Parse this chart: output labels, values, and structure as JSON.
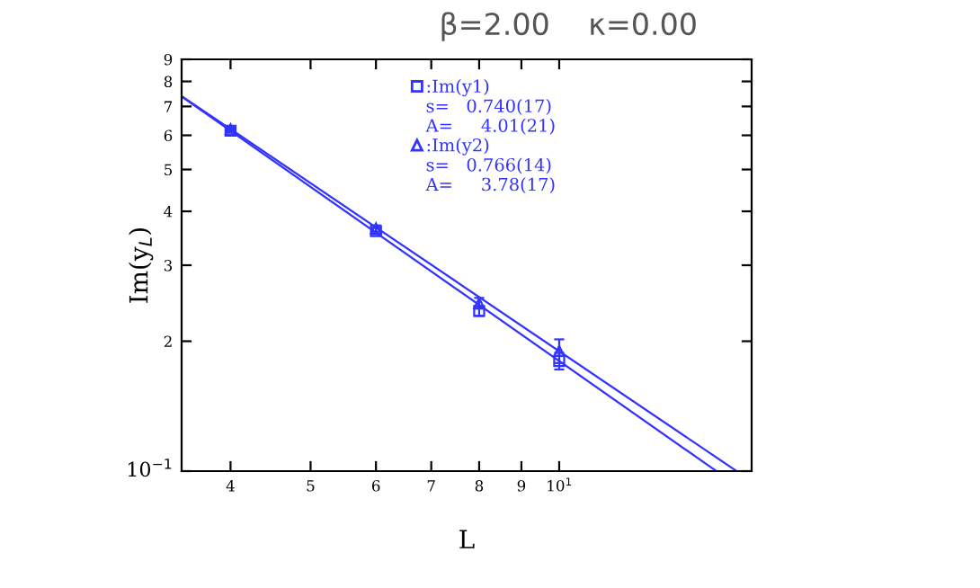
{
  "chart_data": {
    "type": "scatter",
    "title": "β=2.00    κ=0.00",
    "xlabel": "L",
    "ylabel": "Im(y$_{L}$)",
    "log": "xy",
    "grid": false,
    "legend": "top",
    "xlim": [
      3.49,
      17.1
    ],
    "xticks": [
      4,
      5,
      6,
      7,
      8,
      9,
      {
        "value": 10,
        "label": "10$^{1}$"
      }
    ],
    "ylim": [
      1,
      9
    ],
    "yticks": [
      {
        "value": 1,
        "label": null
      },
      2,
      3,
      4,
      5,
      6,
      7,
      8,
      9
    ],
    "annotations": [
      "s=   0.740(17)",
      "A=     4.01(21)",
      "s=   0.766(14)",
      "A=     3.78(17)",
      "10$^{−1}$"
    ],
    "series": [
      {
        "name": ":Im(y1)",
        "type": "scatter",
        "marker": "square",
        "color": "#3333ff",
        "x": [
          4,
          6,
          8,
          10
        ],
        "values": [
          6.15,
          3.6,
          2.35,
          1.8
        ],
        "errors": [
          0.05,
          0.06,
          0.06,
          0.08
        ]
      },
      {
        "name": ":Im(y2)",
        "type": "scatter",
        "marker": "triangle",
        "color": "#3333ff",
        "x": [
          4,
          6,
          8,
          10
        ],
        "values": [
          6.2,
          3.65,
          2.45,
          1.9
        ],
        "errors": [
          0.05,
          0.06,
          0.07,
          0.12
        ]
      },
      {
        "type": "line",
        "marker": "none",
        "color": "#3333ff",
        "x": [
          3.49,
          15.5
        ],
        "values": [
          7.38,
          1
        ]
      },
      {
        "type": "line",
        "marker": "none",
        "color": "#3333ff",
        "x": [
          3.49,
          16.4
        ],
        "values": [
          7.4,
          1
        ]
      }
    ]
  }
}
